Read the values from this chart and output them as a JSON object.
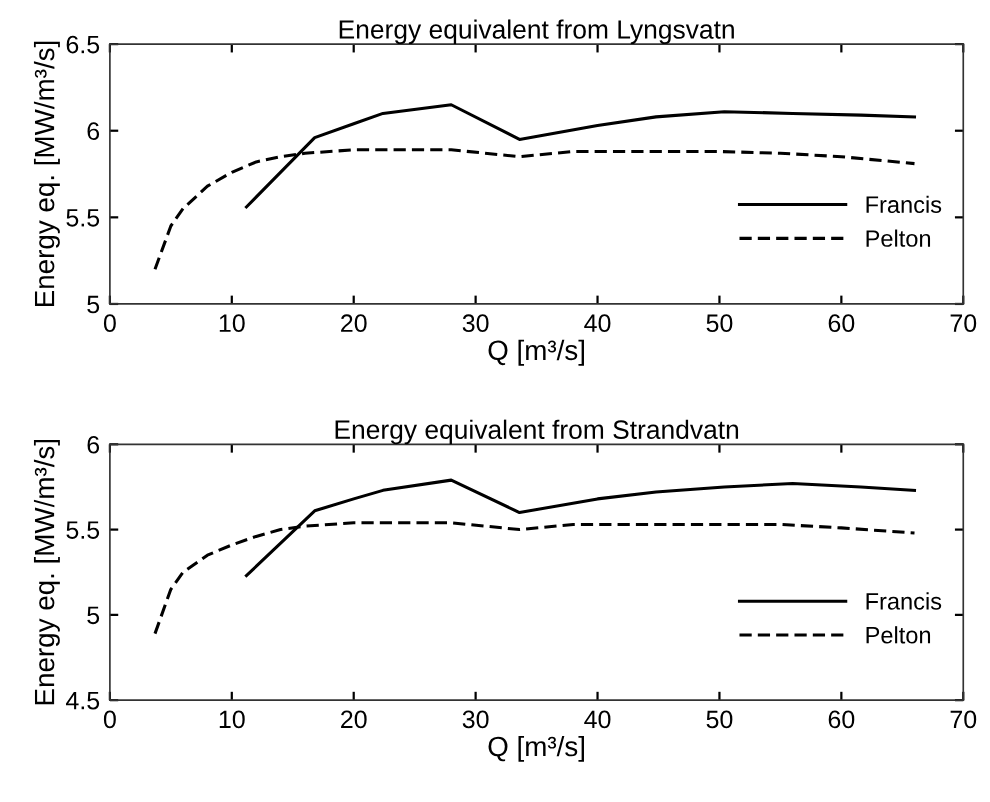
{
  "chart_data": [
    {
      "type": "line",
      "title": "Energy equivalent from Lyngsvatn",
      "xlabel": "Q [m³/s]",
      "ylabel": "Energy eq. [MW/m³/s]",
      "xlim": [
        0,
        70
      ],
      "xticks": [
        0,
        10,
        20,
        30,
        40,
        50,
        60,
        70
      ],
      "ylim": [
        5,
        6.5
      ],
      "yticks": [
        5,
        5.5,
        6,
        6.5
      ],
      "grid": false,
      "legend": "bottom right",
      "marker": "none",
      "series": [
        {
          "name": "Francis",
          "color": "#000000",
          "line_style": "solid",
          "x": [
            11.2,
            16.8,
            20,
            22.4,
            28,
            33.6,
            40,
            44.8,
            50.4,
            56,
            61.6,
            66
          ],
          "values": [
            5.56,
            5.96,
            6.04,
            6.1,
            6.15,
            5.95,
            6.03,
            6.08,
            6.11,
            6.1,
            6.09,
            6.08
          ]
        },
        {
          "name": "Pelton",
          "color": "#000000",
          "line_style": "dashed",
          "x": [
            3.7,
            5,
            6,
            8,
            10,
            12,
            14,
            16,
            20,
            25,
            28,
            33.6,
            38,
            45,
            50,
            55,
            60,
            66
          ],
          "values": [
            5.2,
            5.45,
            5.55,
            5.68,
            5.76,
            5.82,
            5.85,
            5.87,
            5.89,
            5.89,
            5.89,
            5.85,
            5.88,
            5.88,
            5.88,
            5.87,
            5.85,
            5.81
          ]
        }
      ]
    },
    {
      "type": "line",
      "title": "Energy equivalent from Strandvatn",
      "xlabel": "Q [m³/s]",
      "ylabel": "Energy eq. [MW/m³/s]",
      "xlim": [
        0,
        70
      ],
      "xticks": [
        0,
        10,
        20,
        30,
        40,
        50,
        60,
        70
      ],
      "ylim": [
        4.5,
        6
      ],
      "yticks": [
        4.5,
        5,
        5.5,
        6
      ],
      "grid": false,
      "legend": "bottom right",
      "marker": "none",
      "series": [
        {
          "name": "Francis",
          "color": "#000000",
          "line_style": "solid",
          "x": [
            11.2,
            16.8,
            20,
            22.4,
            28,
            33.6,
            40,
            44.8,
            50.4,
            56,
            61.6,
            66
          ],
          "values": [
            5.23,
            5.61,
            5.68,
            5.73,
            5.79,
            5.6,
            5.68,
            5.72,
            5.75,
            5.77,
            5.75,
            5.73
          ]
        },
        {
          "name": "Pelton",
          "color": "#000000",
          "line_style": "dashed",
          "x": [
            3.7,
            5,
            6,
            8,
            10,
            12,
            14,
            16,
            20,
            25,
            28,
            33.6,
            38,
            45,
            50,
            55,
            60,
            66
          ],
          "values": [
            4.89,
            5.15,
            5.25,
            5.35,
            5.41,
            5.46,
            5.5,
            5.52,
            5.54,
            5.54,
            5.54,
            5.5,
            5.53,
            5.53,
            5.53,
            5.53,
            5.51,
            5.48
          ]
        }
      ]
    }
  ]
}
